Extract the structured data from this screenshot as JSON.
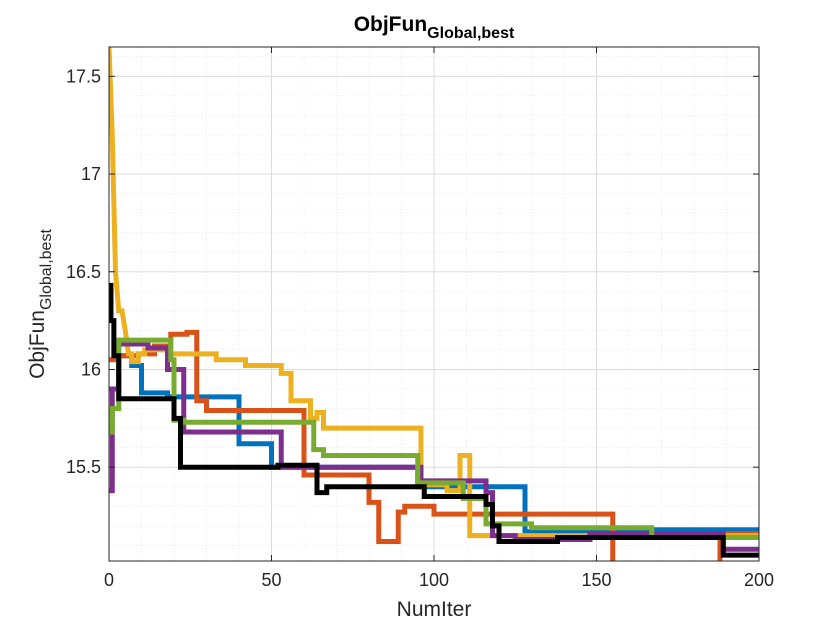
{
  "chart_data": {
    "type": "line",
    "title": "ObjFun",
    "title_sub": "Global,best",
    "xlabel": "NumIter",
    "ylabel": "ObjFun",
    "ylabel_sub": "Global,best",
    "xlim": [
      0,
      200
    ],
    "ylim": [
      15.02,
      17.65
    ],
    "xticks": [
      0,
      50,
      100,
      150,
      200
    ],
    "yticks": [
      15.5,
      16,
      16.5,
      17,
      17.5
    ],
    "grid": true,
    "minor_grid": true,
    "legend": "none",
    "series": [
      {
        "color": "#0072BD",
        "x": [
          0,
          3,
          3,
          7,
          7,
          10,
          10,
          18,
          18,
          40,
          40,
          50,
          50,
          95,
          95,
          128,
          128,
          148,
          148,
          200
        ],
        "y": [
          15.9,
          15.9,
          16.07,
          16.07,
          16.02,
          16.02,
          15.88,
          15.88,
          15.86,
          15.86,
          15.62,
          15.62,
          15.5,
          15.5,
          15.4,
          15.4,
          15.17,
          15.17,
          15.18,
          15.18
        ]
      },
      {
        "color": "#D95319",
        "x": [
          0,
          3,
          3,
          9,
          9,
          14,
          14,
          19,
          19,
          24,
          24,
          27,
          27,
          30,
          30,
          60,
          60,
          80,
          80,
          83,
          83,
          89,
          89,
          91,
          91,
          100,
          100,
          155,
          155,
          188,
          188,
          200
        ],
        "y": [
          16.05,
          16.05,
          16.07,
          16.07,
          16.08,
          16.08,
          16.12,
          16.12,
          16.18,
          16.18,
          16.19,
          16.19,
          15.84,
          15.84,
          15.79,
          15.79,
          15.46,
          15.46,
          15.32,
          15.32,
          15.12,
          15.12,
          15.27,
          15.27,
          15.3,
          15.3,
          15.26,
          15.26,
          15.01,
          15.01,
          15.16,
          15.16
        ]
      },
      {
        "color": "#EDB120",
        "x": [
          0,
          1,
          2,
          3,
          4,
          5,
          6,
          7,
          7,
          9,
          9,
          11,
          11,
          18,
          18,
          33,
          33,
          42,
          42,
          53,
          53,
          56,
          56,
          62,
          62,
          64,
          64,
          66,
          66,
          77,
          77,
          96,
          96,
          104,
          104,
          108,
          108,
          111,
          111,
          200
        ],
        "y": [
          17.65,
          17.2,
          16.5,
          16.3,
          16.3,
          16.2,
          16.08,
          16.08,
          16.04,
          16.04,
          16.08,
          16.08,
          16.1,
          16.1,
          16.08,
          16.08,
          16.05,
          16.05,
          16.02,
          16.02,
          15.98,
          15.98,
          15.84,
          15.84,
          15.75,
          15.75,
          15.78,
          15.78,
          15.7,
          15.7,
          15.7,
          15.7,
          15.41,
          15.41,
          15.38,
          15.38,
          15.56,
          15.56,
          15.15,
          15.15
        ]
      },
      {
        "color": "#7E2F8E",
        "x": [
          0,
          1,
          1,
          3,
          3,
          12,
          12,
          18,
          18,
          23,
          23,
          53,
          53,
          96,
          96,
          116,
          116,
          118,
          118,
          125,
          125,
          148,
          148,
          189,
          189,
          200
        ],
        "y": [
          15.38,
          15.38,
          15.9,
          15.9,
          16.13,
          16.13,
          16.11,
          16.11,
          16.0,
          16.0,
          15.68,
          15.68,
          15.5,
          15.5,
          15.43,
          15.43,
          15.37,
          15.37,
          15.15,
          15.15,
          15.13,
          15.13,
          15.16,
          15.16,
          15.08,
          15.08
        ]
      },
      {
        "color": "#77AC30",
        "x": [
          0,
          1,
          1,
          3,
          3,
          19,
          19,
          20,
          20,
          23,
          23,
          63,
          63,
          66,
          66,
          95,
          95,
          109,
          109,
          116,
          116,
          119,
          119,
          130,
          130,
          167,
          167,
          200
        ],
        "y": [
          15.68,
          15.68,
          15.8,
          15.8,
          16.15,
          16.15,
          16.05,
          16.05,
          15.74,
          15.74,
          15.73,
          15.73,
          15.59,
          15.59,
          15.56,
          15.56,
          15.42,
          15.42,
          15.34,
          15.34,
          15.21,
          15.21,
          15.21,
          15.21,
          15.19,
          15.19,
          15.14,
          15.14
        ]
      },
      {
        "color": "#000000",
        "x": [
          0,
          0.6,
          0.6,
          1.5,
          1.5,
          3,
          3,
          20,
          20,
          22,
          22,
          52,
          52,
          64,
          64,
          67,
          67,
          97,
          97,
          111,
          111,
          116,
          116,
          118,
          118,
          120,
          120,
          138,
          138,
          189,
          189,
          200
        ],
        "y": [
          16.43,
          16.43,
          16.25,
          16.25,
          16.07,
          16.07,
          15.85,
          15.85,
          15.75,
          15.75,
          15.5,
          15.5,
          15.51,
          15.51,
          15.37,
          15.37,
          15.4,
          15.4,
          15.35,
          15.35,
          15.35,
          15.35,
          15.31,
          15.31,
          15.2,
          15.2,
          15.12,
          15.12,
          15.14,
          15.14,
          15.05,
          15.05
        ]
      }
    ]
  }
}
